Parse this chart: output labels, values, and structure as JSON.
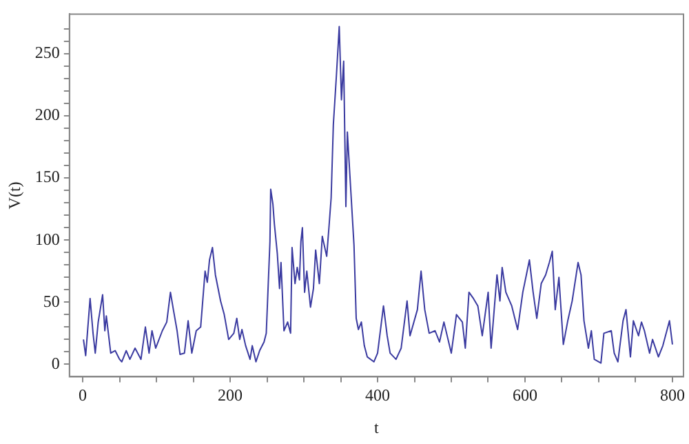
{
  "chart_data": {
    "type": "line",
    "xlabel": "t",
    "ylabel": "V(t)",
    "xlim": [
      -18,
      815
    ],
    "ylim": [
      -10,
      282
    ],
    "xticks": [
      0,
      {
        "value": 50,
        "label": null
      },
      {
        "value": 100,
        "label": null
      },
      {
        "value": 150,
        "label": null
      },
      200,
      {
        "value": 250,
        "label": null
      },
      {
        "value": 300,
        "label": null
      },
      {
        "value": 350,
        "label": null
      },
      400,
      {
        "value": 450,
        "label": null
      },
      {
        "value": 500,
        "label": null
      },
      {
        "value": 550,
        "label": null
      },
      600,
      {
        "value": 650,
        "label": null
      },
      {
        "value": 700,
        "label": null
      },
      {
        "value": 750,
        "label": null
      },
      800
    ],
    "yticks": [
      0,
      {
        "value": 10,
        "label": null
      },
      {
        "value": 20,
        "label": null
      },
      {
        "value": 30,
        "label": null
      },
      {
        "value": 40,
        "label": null
      },
      50,
      {
        "value": 60,
        "label": null
      },
      {
        "value": 70,
        "label": null
      },
      {
        "value": 80,
        "label": null
      },
      {
        "value": 90,
        "label": null
      },
      100,
      {
        "value": 110,
        "label": null
      },
      {
        "value": 120,
        "label": null
      },
      {
        "value": 130,
        "label": null
      },
      {
        "value": 140,
        "label": null
      },
      150,
      {
        "value": 160,
        "label": null
      },
      {
        "value": 170,
        "label": null
      },
      {
        "value": 180,
        "label": null
      },
      {
        "value": 190,
        "label": null
      },
      200,
      {
        "value": 210,
        "label": null
      },
      {
        "value": 220,
        "label": null
      },
      {
        "value": 230,
        "label": null
      },
      {
        "value": 240,
        "label": null
      },
      250,
      {
        "value": 260,
        "label": null
      },
      {
        "value": 270,
        "label": null
      }
    ],
    "grid": false,
    "legend": false,
    "marker": "none",
    "line_style": "solid",
    "series": [
      {
        "color": "#3a3aa0",
        "x": [
          1,
          4,
          10,
          14,
          17,
          21,
          27,
          30,
          32,
          38,
          44,
          50,
          53,
          59,
          64,
          71,
          79,
          85,
          90,
          94,
          99,
          108,
          114,
          119,
          123,
          128,
          132,
          138,
          143,
          148,
          154,
          160,
          166,
          169,
          172,
          176,
          180,
          187,
          192,
          198,
          205,
          209,
          213,
          216,
          221,
          227,
          230,
          235,
          240,
          246,
          249,
          254,
          255,
          258,
          260,
          264,
          267,
          269,
          273,
          278,
          282,
          284,
          288,
          291,
          294,
          296,
          298,
          301,
          304,
          309,
          313,
          316,
          321,
          325,
          331,
          334,
          337,
          340,
          344,
          348,
          351,
          354,
          357,
          359,
          368,
          371,
          374,
          378,
          382,
          386,
          395,
          400,
          408,
          413,
          417,
          425,
          432,
          440,
          444,
          454,
          459,
          464,
          470,
          478,
          484,
          490,
          500,
          507,
          515,
          519,
          524,
          530,
          536,
          542,
          550,
          554,
          562,
          566,
          569,
          574,
          582,
          590,
          597,
          606,
          611,
          616,
          622,
          628,
          633,
          637,
          641,
          646,
          652,
          658,
          664,
          672,
          676,
          680,
          686,
          690,
          694,
          703,
          707,
          717,
          721,
          726,
          733,
          737,
          743,
          747,
          754,
          758,
          762,
          769,
          773,
          781,
          787,
          796,
          800
        ],
        "values": [
          20,
          7,
          53,
          25,
          9,
          34,
          56,
          27,
          39,
          9,
          11,
          4,
          2,
          11,
          4,
          13,
          4,
          30,
          9,
          27,
          13,
          27,
          34,
          58,
          44,
          27,
          8,
          9,
          35,
          9,
          27,
          30,
          75,
          66,
          84,
          94,
          72,
          51,
          40,
          20,
          25,
          37,
          20,
          28,
          15,
          4,
          15,
          2,
          11,
          18,
          25,
          99,
          141,
          129,
          113,
          89,
          61,
          82,
          27,
          34,
          25,
          94,
          65,
          78,
          68,
          99,
          110,
          58,
          75,
          46,
          61,
          92,
          65,
          103,
          87,
          110,
          134,
          193,
          231,
          272,
          213,
          244,
          127,
          187,
          96,
          37,
          28,
          34,
          15,
          6,
          2,
          9,
          47,
          23,
          9,
          4,
          13,
          51,
          23,
          44,
          75,
          44,
          25,
          27,
          18,
          34,
          9,
          40,
          34,
          13,
          58,
          53,
          47,
          23,
          58,
          13,
          72,
          51,
          78,
          58,
          47,
          28,
          58,
          84,
          58,
          37,
          65,
          72,
          82,
          91,
          44,
          70,
          16,
          35,
          51,
          82,
          72,
          35,
          13,
          27,
          4,
          1,
          25,
          27,
          9,
          2,
          35,
          44,
          6,
          35,
          23,
          34,
          27,
          9,
          20,
          6,
          15,
          35,
          16
        ]
      }
    ]
  }
}
